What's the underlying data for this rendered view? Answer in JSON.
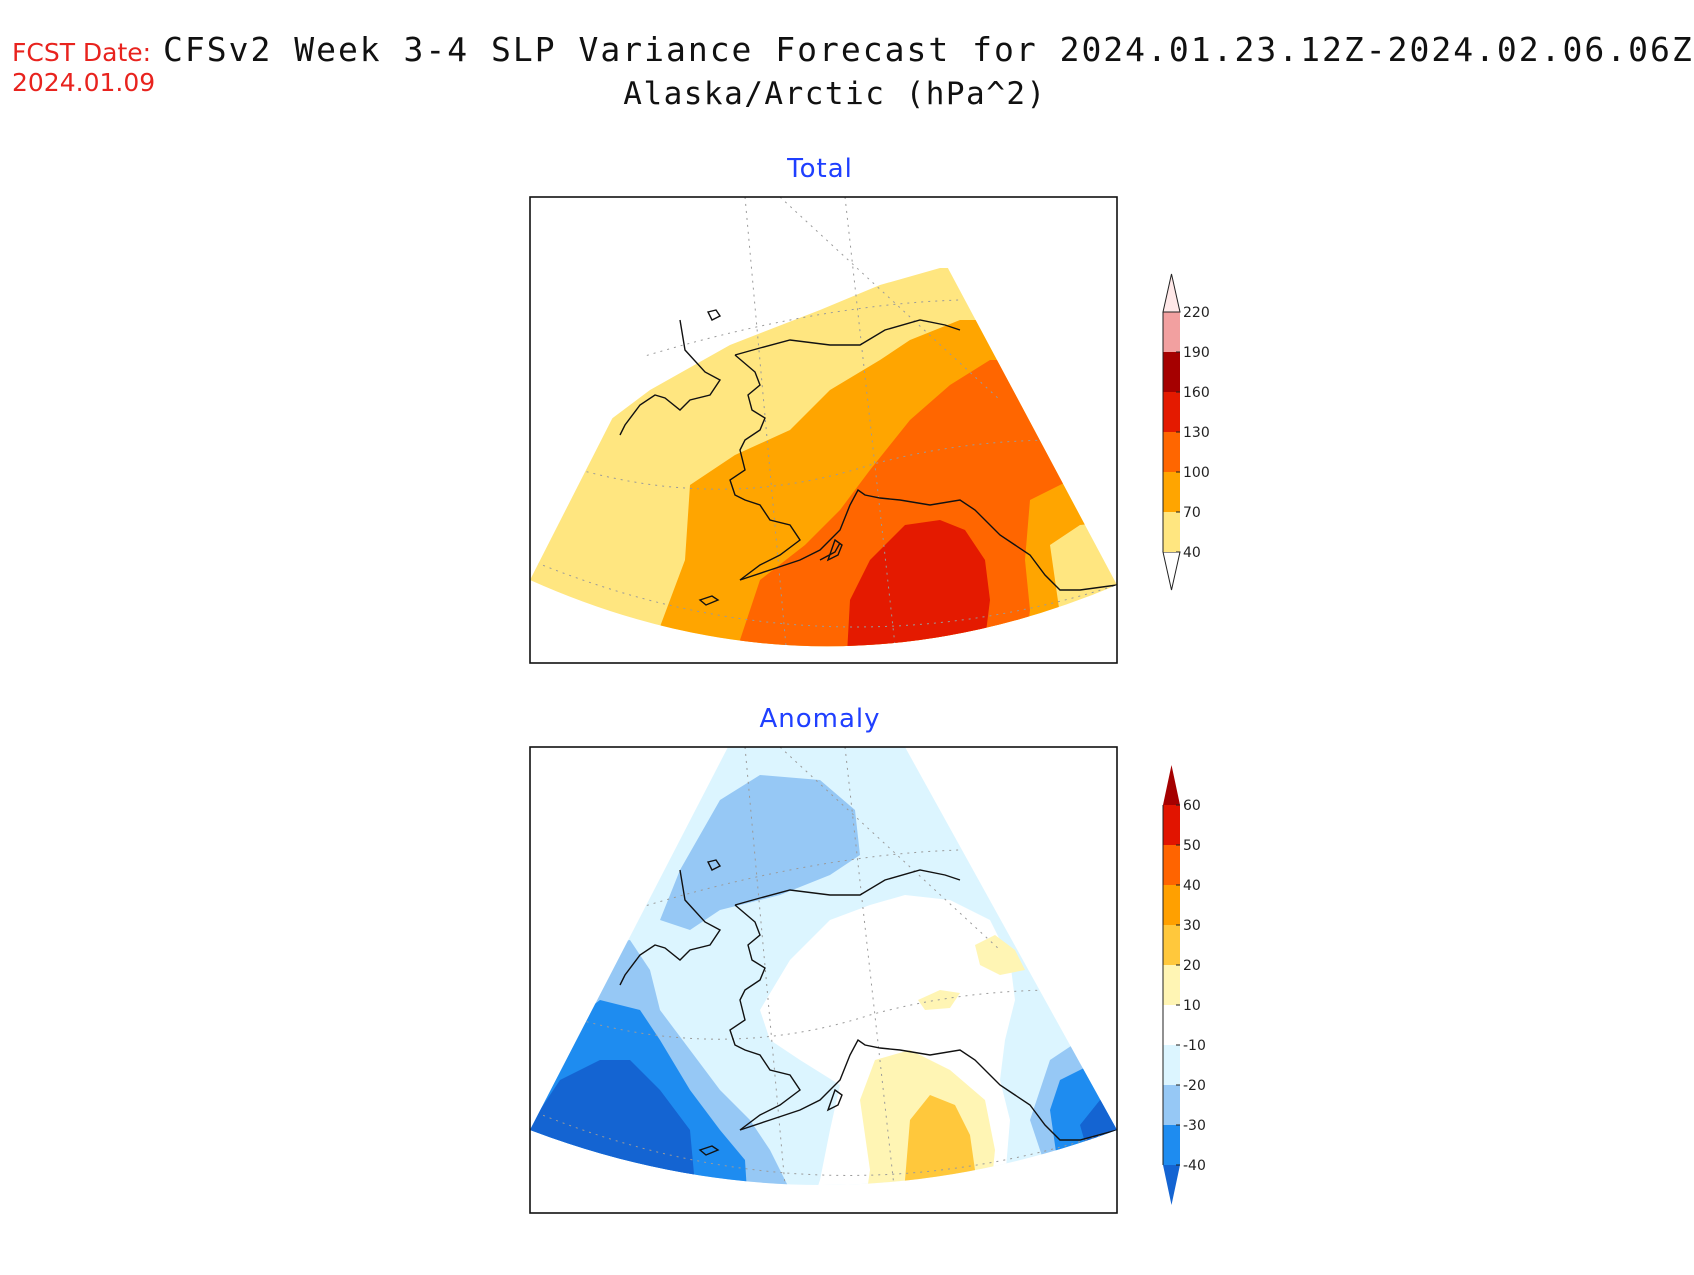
{
  "header": {
    "fcst_label": "FCST Date:",
    "fcst_date": "2024.01.09",
    "title": "CFSv2 Week 3-4 SLP Variance Forecast for 2024.01.23.12Z-2024.02.06.06Z",
    "subtitle": "Alaska/Arctic (hPa^2)"
  },
  "panels": {
    "total": {
      "title": "Total",
      "colorbar": {
        "levels": [
          "40",
          "70",
          "100",
          "130",
          "160",
          "190",
          "220"
        ],
        "colors": [
          "#ffe680",
          "#ffa500",
          "#ff6600",
          "#e41a00",
          "#a50000",
          "#f2a0a0",
          "#ffe8e8"
        ]
      }
    },
    "anomaly": {
      "title": "Anomaly",
      "colorbar": {
        "levels": [
          "-40",
          "-30",
          "-20",
          "-10",
          "10",
          "20",
          "30",
          "40",
          "50",
          "60"
        ],
        "colors": [
          "#1464d2",
          "#1e8cf0",
          "#96c8f5",
          "#dcf5ff",
          "#ffffff",
          "#fff5b4",
          "#ffc83c",
          "#ffa000",
          "#ff6400",
          "#e11400",
          "#a50000"
        ]
      }
    }
  }
}
